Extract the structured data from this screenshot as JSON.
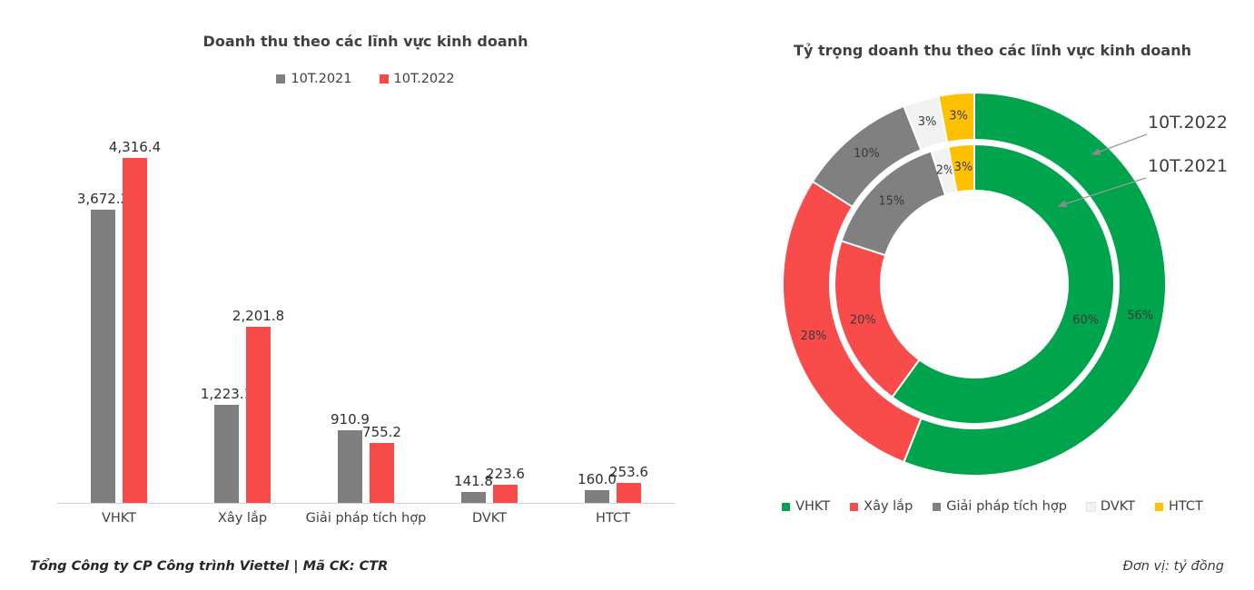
{
  "chart_data": [
    {
      "type": "bar",
      "title": "Doanh thu theo các lĩnh vực kinh doanh",
      "categories": [
        "VHKT",
        "Xây lắp",
        "Giải pháp tích hợp",
        "DVKT",
        "HTCT"
      ],
      "series": [
        {
          "name": "10T.2021",
          "color": "#7F7F7F",
          "values": [
            3672.2,
            1223.1,
            910.9,
            141.8,
            160.0
          ],
          "labels": [
            "3,672.2",
            "1,223.1",
            "910.9",
            "141.8",
            "160.0"
          ]
        },
        {
          "name": "10T.2022",
          "color": "#FA4B4B",
          "values": [
            4316.4,
            2201.8,
            755.2,
            223.6,
            253.6
          ],
          "labels": [
            "4,316.4",
            "2,201.8",
            "755.2",
            "223.6",
            "253.6"
          ]
        }
      ],
      "ylim": [
        0,
        4316.4
      ],
      "grid": false,
      "legend_position": "top"
    },
    {
      "type": "pie",
      "subtype": "double-donut",
      "title": "Tỷ trọng doanh thu theo các lĩnh vực kinh doanh",
      "categories": [
        "VHKT",
        "Xây lắp",
        "Giải pháp tích hợp",
        "DVKT",
        "HTCT"
      ],
      "colors": [
        "#00A44D",
        "#FA4B4B",
        "#808080",
        "#F2F2F2",
        "#FFC000"
      ],
      "rings": [
        {
          "name": "10T.2022",
          "position": "outer",
          "values_pct": [
            56,
            28,
            10,
            3,
            3
          ]
        },
        {
          "name": "10T.2021",
          "position": "inner",
          "values_pct": [
            60,
            20,
            15,
            2,
            3
          ]
        }
      ],
      "annotations": [
        "10T.2022",
        "10T.2021"
      ],
      "legend_position": "bottom"
    }
  ],
  "footer": {
    "left": "Tổng Công ty CP Công trình Viettel | Mã CK: CTR",
    "right": "Đơn vị: tỷ đồng"
  }
}
